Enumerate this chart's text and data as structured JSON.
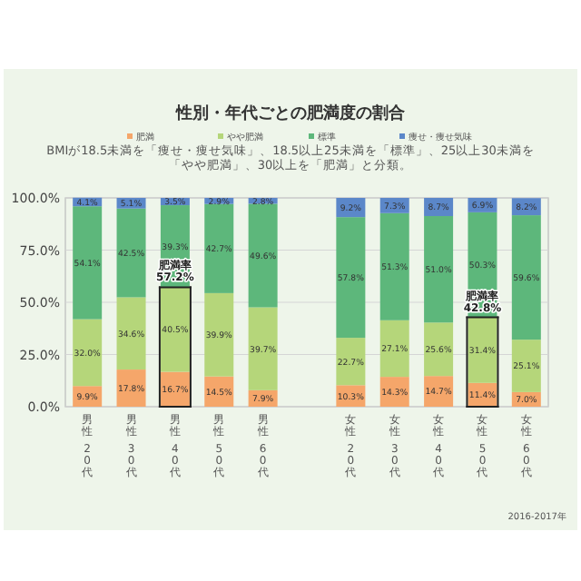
{
  "chart_data": {
    "type": "bar",
    "stacked": true,
    "title": "性別・年代ごとの肥満度の割合",
    "subtitle": "BMIが18.5未満を「痩せ・痩せ気味」、18.5以上25未満を「標準」、25以上30未満を「やや肥満」、30以上を「肥満」と分類。",
    "categories": [
      "男性 20代",
      "男性 30代",
      "男性 40代",
      "男性 50代",
      "男性 60代",
      null,
      "女性 20代",
      "女性 30代",
      "女性 40代",
      "女性 50代",
      "女性 60代"
    ],
    "series": [
      {
        "name": "肥満",
        "color": "#f5a66a",
        "values": [
          9.9,
          17.8,
          16.7,
          14.5,
          7.9,
          null,
          10.3,
          14.3,
          14.7,
          11.4,
          7.0
        ],
        "value_labels": [
          "9.9%",
          "17.8%",
          "16.7%",
          "14.5%",
          "7.9%",
          null,
          "10.3%",
          "14.3%",
          "14.7%",
          "11.4%",
          "7.0%"
        ]
      },
      {
        "name": "やや肥満",
        "color": "#b5d67a",
        "values": [
          32.0,
          34.6,
          40.5,
          39.9,
          39.7,
          null,
          22.7,
          27.1,
          25.6,
          31.4,
          25.1
        ],
        "value_labels": [
          "32.0%",
          "34.6%",
          "40.5%",
          "39.9%",
          "39.7%",
          null,
          "22.7%",
          "27.1%",
          "25.6%",
          "31.4%",
          "25.1%"
        ]
      },
      {
        "name": "標準",
        "color": "#5db77b",
        "values": [
          54.1,
          42.5,
          39.3,
          42.7,
          49.6,
          null,
          57.8,
          51.3,
          51.0,
          50.3,
          59.6
        ],
        "value_labels": [
          "54.1%",
          "42.5%",
          "39.3%",
          "42.7%",
          "49.6%",
          null,
          "57.8%",
          "51.3%",
          "51.0%",
          "50.3%",
          "59.6%"
        ]
      },
      {
        "name": "痩せ・痩せ気味",
        "color": "#5b87c9",
        "values": [
          4.1,
          5.1,
          3.5,
          2.9,
          2.8,
          null,
          9.2,
          7.3,
          8.7,
          6.9,
          8.2
        ],
        "value_labels": [
          "4.1%",
          "5.1%",
          "3.5%",
          "2.9%",
          "2.8%",
          null,
          "9.2%",
          "7.3%",
          "8.7%",
          "6.9%",
          "8.2%"
        ]
      }
    ],
    "ylim": [
      0,
      100
    ],
    "yticks": [
      {
        "value": 0,
        "label": "0.0%"
      },
      {
        "value": 25,
        "label": "25.0%"
      },
      {
        "value": 50,
        "label": "50.0%"
      },
      {
        "value": 75,
        "label": "75.0%"
      },
      {
        "value": 100,
        "label": "100.0%"
      }
    ],
    "grid": "y",
    "legend": "top",
    "annotations": [
      {
        "text": "肥満率 57.2%",
        "x": "男性 40代",
        "y": 57.2
      },
      {
        "text": "肥満率 42.8%",
        "x": "女性 50代",
        "y": 42.8
      },
      "2016-2017年"
    ]
  }
}
